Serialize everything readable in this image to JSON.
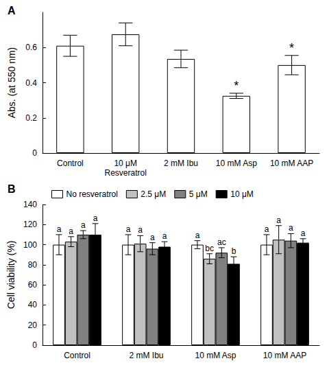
{
  "chart_data": [
    {
      "type": "bar",
      "title": "A",
      "ylabel": "Abs. (at 550 nm)",
      "categories": [
        "Control",
        "10 μM\nResveratrol",
        "2 mM Ibu",
        "10 mM Asp",
        "10 mM AAP"
      ],
      "values": [
        0.61,
        0.675,
        0.535,
        0.325,
        0.5
      ],
      "errors": [
        0.06,
        0.065,
        0.05,
        0.015,
        0.055
      ],
      "annotations": [
        null,
        null,
        null,
        "*",
        "*"
      ],
      "color": "#ffffff",
      "ylim": [
        0,
        0.8
      ],
      "yticks": [
        0,
        0.2,
        0.4,
        0.6
      ],
      "grid": false
    },
    {
      "type": "bar",
      "title": "B",
      "ylabel": "Cell viability (%)",
      "categories": [
        "Control",
        "2 mM Ibu",
        "10 mM Asp",
        "10 mM AAP"
      ],
      "series": [
        {
          "name": "No resveratrol",
          "color": "#ffffff",
          "values": [
            100,
            100,
            100,
            100
          ],
          "errors": [
            10,
            10,
            4,
            10
          ],
          "letters": [
            "a",
            "a",
            "a",
            "a"
          ]
        },
        {
          "name": "2.5 μM",
          "color": "#c0c0c0",
          "values": [
            103,
            101,
            86,
            105
          ],
          "errors": [
            5,
            8,
            5,
            14
          ],
          "letters": [
            "a",
            "a",
            "bc",
            "a"
          ]
        },
        {
          "name": "5 μM",
          "color": "#808080",
          "values": [
            110,
            96,
            92,
            104
          ],
          "errors": [
            4,
            6,
            5,
            7
          ],
          "letters": [
            "a",
            "a",
            "ac",
            "a"
          ]
        },
        {
          "name": "10 μM",
          "color": "#000000",
          "values": [
            110,
            98,
            81,
            102
          ],
          "errors": [
            11,
            5,
            7,
            4
          ],
          "letters": [
            "a",
            "a",
            "b",
            "a"
          ]
        }
      ],
      "legend": "top",
      "ylim": [
        0,
        140
      ],
      "yticks": [
        0,
        20,
        40,
        60,
        80,
        100,
        120,
        140
      ],
      "grid": false
    }
  ]
}
